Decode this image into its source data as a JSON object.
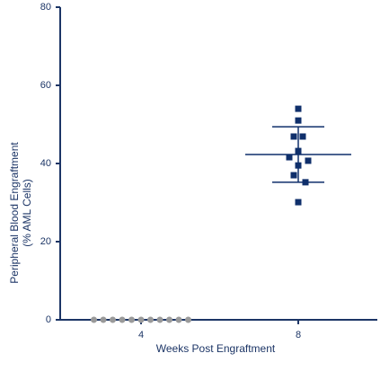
{
  "chart_data": {
    "type": "dot",
    "ylabel": [
      "Peripheral Blood Engraftment",
      "(% AML Cells)"
    ],
    "xlabel": "Weeks Post Engraftment",
    "categories": [
      "4",
      "8"
    ],
    "groups": [
      {
        "values": [
          0,
          0,
          0,
          0,
          0,
          0,
          0,
          0,
          0,
          0,
          0
        ],
        "color": "#9a9a9a",
        "marker": "circle"
      },
      {
        "values": [
          54.0,
          51.0,
          46.9,
          46.9,
          43.2,
          41.6,
          40.7,
          39.5,
          37.0,
          35.2,
          30.1
        ],
        "color": "#0f2f6b",
        "marker": "square",
        "mean": 42.3,
        "error": 7.1
      }
    ],
    "ylim": [
      0,
      80
    ],
    "yticks": [
      0,
      20,
      40,
      60,
      80
    ],
    "axis_color": "#1c3566"
  }
}
